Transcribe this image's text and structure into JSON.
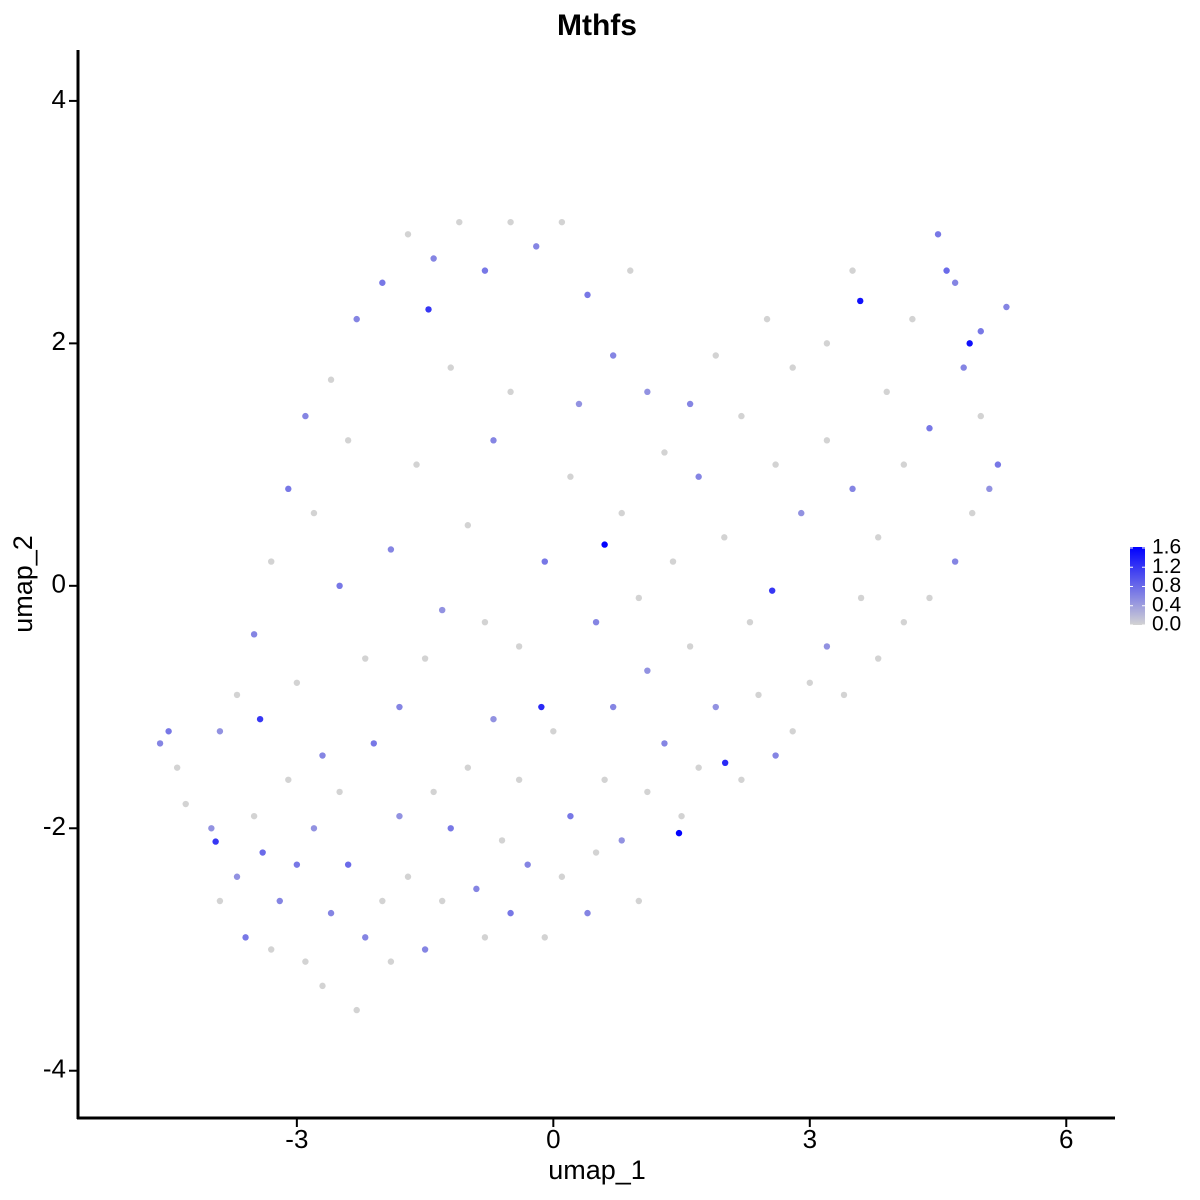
{
  "chart_data": {
    "type": "scatter",
    "title": "Mthfs",
    "x_label": "umap_1",
    "y_label": "umap_2",
    "xlim": [
      -5.56,
      6.57
    ],
    "ylim": [
      -4.39,
      4.42
    ],
    "xticks": [
      -3,
      0,
      3,
      6
    ],
    "yticks": [
      -4,
      -2,
      0,
      2,
      4
    ],
    "low_color": "#d3d3d3",
    "high_color": "#0000ff",
    "color_lim": [
      0,
      1.62
    ],
    "color_ticks": [
      {
        "value": 0,
        "label": "0.0"
      },
      0.4,
      0.8,
      1.2,
      1.6
    ],
    "x": [
      -4.6,
      -4.5,
      -4.4,
      -4.3,
      -4.0,
      -3.9,
      -3.7,
      -3.6,
      -3.5,
      -3.4,
      -3.3,
      -3.2,
      -3.1,
      -3.0,
      -2.9,
      -2.8,
      -2.7,
      -2.6,
      -2.5,
      -2.4,
      -2.3,
      -2.2,
      -2.1,
      -2.0,
      -1.9,
      -1.8,
      -1.7,
      -1.5,
      -1.4,
      -1.3,
      -1.2,
      -1.0,
      -0.9,
      -0.8,
      -0.7,
      -0.6,
      -0.5,
      -0.4,
      -0.3,
      -0.1,
      0.1,
      0.2,
      0.4,
      0.5,
      0.6,
      0.8,
      1.0,
      1.1,
      1.3,
      1.5,
      1.7,
      1.9,
      2.2,
      2.4,
      2.6,
      2.8,
      3.0,
      3.2,
      3.4,
      3.6,
      3.8,
      4.1,
      4.4,
      4.7,
      4.9,
      5.1,
      5.2,
      5.0,
      4.8,
      5.0,
      5.3,
      4.6,
      4.5,
      4.7,
      4.2,
      3.9,
      3.5,
      3.2,
      2.8,
      2.5,
      2.2,
      1.9,
      1.6,
      1.3,
      1.1,
      0.9,
      0.7,
      0.4,
      0.1,
      -0.2,
      -0.5,
      -0.8,
      -1.1,
      -1.4,
      -1.7,
      -2.0,
      -2.3,
      -2.6,
      -2.9,
      -3.1,
      -3.3,
      -3.5,
      -3.7,
      -3.9,
      -2.8,
      -2.5,
      -2.2,
      -1.9,
      -1.6,
      -1.3,
      -1.0,
      -0.7,
      -0.4,
      -0.1,
      0.2,
      0.5,
      0.8,
      1.1,
      1.4,
      1.7,
      2.0,
      2.3,
      2.6,
      2.9,
      3.2,
      3.5,
      3.8,
      4.1,
      4.4,
      -2.4,
      -1.8,
      -1.2,
      -0.5,
      0.3,
      1.0,
      -3.0,
      -2.7,
      -1.5,
      -0.8,
      0.0,
      0.7,
      1.6,
      0.6,
      3.59,
      1.47,
      4.87,
      -0.14,
      2.01,
      -3.43,
      -3.95,
      2.56,
      -1.46
    ],
    "y": [
      -1.3,
      -1.2,
      -1.5,
      -1.8,
      -2.0,
      -2.6,
      -2.4,
      -2.9,
      -1.9,
      -2.2,
      -3.0,
      -2.6,
      -1.6,
      -2.3,
      -3.1,
      -2.0,
      -3.3,
      -2.7,
      -1.7,
      -2.3,
      -3.5,
      -2.9,
      -1.3,
      -2.6,
      -3.1,
      -1.9,
      -2.4,
      -3.0,
      -1.7,
      -2.6,
      -2.0,
      -1.5,
      -2.5,
      -2.9,
      -1.1,
      -2.1,
      -2.7,
      -1.6,
      -2.3,
      -2.9,
      -2.4,
      -1.9,
      -2.7,
      -2.2,
      -1.6,
      -2.1,
      -2.6,
      -1.7,
      -1.3,
      -1.9,
      -1.5,
      -1.0,
      -1.6,
      -0.9,
      -1.4,
      -1.2,
      -0.8,
      -0.5,
      -0.9,
      -0.1,
      -0.6,
      -0.3,
      -0.1,
      0.2,
      0.6,
      0.8,
      1.0,
      1.4,
      1.8,
      2.1,
      2.3,
      2.6,
      2.9,
      2.5,
      2.2,
      1.6,
      2.6,
      2.0,
      1.8,
      2.2,
      1.4,
      1.9,
      1.5,
      1.1,
      1.6,
      2.6,
      1.9,
      2.4,
      3.0,
      2.8,
      3.0,
      2.6,
      3.0,
      2.7,
      2.9,
      2.5,
      2.2,
      1.7,
      1.4,
      0.8,
      0.2,
      -0.4,
      -0.9,
      -1.2,
      0.6,
      0.0,
      -0.6,
      0.3,
      1.0,
      -0.2,
      0.5,
      1.2,
      -0.5,
      0.2,
      0.9,
      -0.3,
      0.6,
      -0.7,
      0.2,
      0.9,
      0.4,
      -0.3,
      1.0,
      0.6,
      1.2,
      0.8,
      0.4,
      1.0,
      1.3,
      1.2,
      -1.0,
      1.8,
      1.6,
      1.5,
      -0.1,
      -0.8,
      -1.4,
      -0.6,
      -0.3,
      -1.2,
      -1.0,
      -0.5,
      0.34,
      2.35,
      -2.04,
      2.0,
      -1.0,
      -1.46,
      -1.1,
      -2.11,
      -0.04,
      2.28
    ],
    "values": [
      0.6,
      0.7,
      0,
      0,
      0.5,
      0,
      0.5,
      0.7,
      0,
      0.8,
      0,
      0.6,
      0,
      0.7,
      0,
      0.5,
      0,
      0.6,
      0,
      0.8,
      0,
      0.6,
      0.7,
      0,
      0,
      0.5,
      0,
      0.6,
      0,
      0,
      0.7,
      0,
      0.6,
      0,
      0.5,
      0,
      0.7,
      0,
      0.6,
      0,
      0,
      0.7,
      0.6,
      0,
      0,
      0.5,
      0,
      0,
      0.6,
      0,
      0,
      0.5,
      0,
      0,
      0.6,
      0,
      0,
      0.5,
      0,
      0,
      0,
      0,
      0,
      0.6,
      0,
      0.5,
      0.7,
      0,
      0.6,
      0.7,
      0.6,
      0.8,
      0.7,
      0.6,
      0,
      0,
      0,
      0,
      0,
      0,
      0,
      0,
      0.6,
      0,
      0.5,
      0,
      0.6,
      0.7,
      0,
      0.6,
      0,
      0.7,
      0,
      0.6,
      0,
      0.7,
      0.6,
      0,
      0.6,
      0.7,
      0,
      0.6,
      0,
      0.5,
      0,
      0.7,
      0,
      0.6,
      0,
      0.5,
      0,
      0.6,
      0,
      0.7,
      0,
      0.6,
      0,
      0.5,
      0,
      0.6,
      0,
      0,
      0,
      0.5,
      0,
      0.6,
      0,
      0,
      0.7,
      0,
      0.6,
      0,
      0,
      0.5,
      0,
      0,
      0.6,
      0,
      0,
      0,
      0.6,
      0,
      1.6,
      1.5,
      1.6,
      1.5,
      1.3,
      1.3,
      1.2,
      1.2,
      1.2,
      1.2
    ]
  }
}
